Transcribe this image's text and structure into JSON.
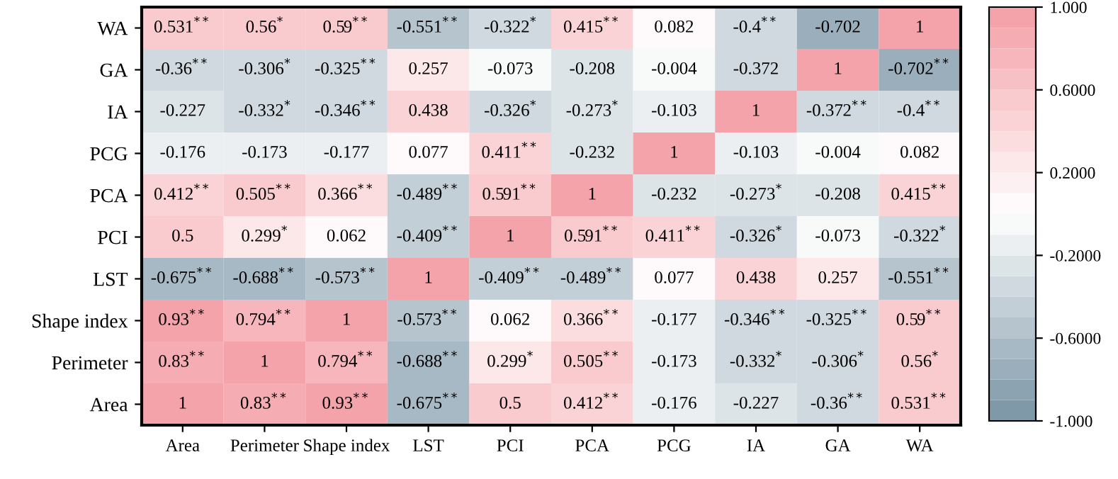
{
  "chart_data": {
    "type": "heatmap",
    "categories": [
      "Area",
      "Perimeter",
      "Shape index",
      "LST",
      "PCI",
      "PCA",
      "PCG",
      "IA",
      "GA",
      "WA"
    ],
    "y_categories": [
      "WA",
      "GA",
      "IA",
      "PCG",
      "PCA",
      "PCI",
      "LST",
      "Shape index",
      "Perimeter",
      "Area"
    ],
    "cells": [
      [
        0.531,
        0.56,
        0.59,
        -0.551,
        -0.322,
        0.415,
        0.082,
        -0.4,
        -0.702,
        1
      ],
      [
        -0.36,
        -0.306,
        -0.325,
        0.257,
        -0.073,
        -0.208,
        -0.004,
        -0.372,
        1,
        -0.702
      ],
      [
        -0.227,
        -0.332,
        -0.346,
        0.438,
        -0.326,
        -0.273,
        -0.103,
        1,
        -0.372,
        -0.4
      ],
      [
        -0.176,
        -0.173,
        -0.177,
        0.077,
        0.411,
        -0.232,
        1,
        -0.103,
        -0.004,
        0.082
      ],
      [
        0.412,
        0.505,
        0.366,
        -0.489,
        0.591,
        1,
        -0.232,
        -0.273,
        -0.208,
        0.415
      ],
      [
        0.5,
        0.299,
        0.062,
        -0.409,
        1,
        0.591,
        0.411,
        -0.326,
        -0.073,
        -0.322
      ],
      [
        -0.675,
        -0.688,
        -0.573,
        1,
        -0.409,
        -0.489,
        0.077,
        0.438,
        0.257,
        -0.551
      ],
      [
        0.93,
        0.794,
        1,
        -0.573,
        0.062,
        0.366,
        -0.177,
        -0.346,
        -0.325,
        0.59
      ],
      [
        0.83,
        1,
        0.794,
        -0.688,
        0.299,
        0.505,
        -0.173,
        -0.332,
        -0.306,
        0.56
      ],
      [
        1,
        0.83,
        0.93,
        -0.675,
        0.5,
        0.412,
        -0.176,
        -0.227,
        -0.36,
        0.531
      ]
    ],
    "cell_labels": [
      [
        "0.531$^{**}$",
        "0.56$^{*}$",
        "0.59$^{**}$",
        "-0.551$^{**}$",
        "-0.322$^{*}$",
        "0.415$^{**}$",
        "0.082",
        "-0.4$^{**}$",
        "-0.702",
        "1"
      ],
      [
        "-0.36$^{**}$",
        "-0.306$^{*}$",
        "-0.325$^{**}$",
        "0.257",
        "-0.073",
        "-0.208",
        "-0.004",
        "-0.372",
        "1",
        "-0.702$^{**}$"
      ],
      [
        "-0.227",
        "-0.332$^{*}$",
        "-0.346$^{**}$",
        "0.438",
        "-0.326$^{*}$",
        "-0.273$^{*}$",
        "-0.103",
        "1",
        "-0.372$^{**}$",
        "-0.4$^{**}$"
      ],
      [
        "-0.176",
        "-0.173",
        "-0.177",
        "0.077",
        "0.411$^{**}$",
        "-0.232",
        "1",
        "-0.103",
        "-0.004",
        "0.082"
      ],
      [
        "0.412$^{**}$",
        "0.505$^{**}$",
        "0.366$^{**}$",
        "-0.489$^{**}$",
        "0.591$^{**}$",
        "1",
        "-0.232",
        "-0.273$^{*}$",
        "-0.208",
        "0.415$^{**}$"
      ],
      [
        "0.5",
        "0.299$^{*}$",
        "0.062",
        "-0.409$^{**}$",
        "1",
        "0.591$^{**}$",
        "0.411$^{**}$",
        "-0.326$^{*}$",
        "-0.073",
        "-0.322$^{*}$"
      ],
      [
        "-0.675$^{**}$",
        "-0.688$^{**}$",
        "-0.573$^{**}$",
        "1",
        "-0.409$^{**}$",
        "-0.489$^{**}$",
        "0.077",
        "0.438",
        "0.257",
        "-0.551$^{**}$"
      ],
      [
        "0.93$^{**}$",
        "0.794$^{**}$",
        "1",
        "-0.573$^{**}$",
        "0.062",
        "0.366$^{**}$",
        "-0.177",
        "-0.346$^{**}$",
        "-0.325$^{**}$",
        "0.59$^{**}$"
      ],
      [
        "0.83$^{**}$",
        "1",
        "0.794$^{**}$",
        "-0.688$^{**}$",
        "0.299$^{*}$",
        "0.505$^{**}$",
        "-0.173",
        "-0.332$^{*}$",
        "-0.306$^{*}$",
        "0.56$^{*}$"
      ],
      [
        "1",
        "0.83$^{**}$",
        "0.93$^{**}$",
        "-0.675$^{**}$",
        "0.5",
        "0.412$^{**}$",
        "-0.176",
        "-0.227",
        "-0.36$^{**}$",
        "0.531$^{**}$"
      ]
    ],
    "colors": [
      "#7f99a9",
      "#ffffff",
      "#f4a3aa"
    ],
    "clim": [
      -1,
      1
    ],
    "cticks": [
      {
        "value": 1,
        "label": "1.000"
      },
      {
        "value": 0.6,
        "label": "0.6000"
      },
      {
        "value": 0.2,
        "label": "0.2000"
      },
      {
        "value": -0.2,
        "label": "-0.2000"
      },
      {
        "value": -0.6,
        "label": "-0.6000"
      },
      {
        "value": -1,
        "label": "-1.000"
      }
    ]
  }
}
